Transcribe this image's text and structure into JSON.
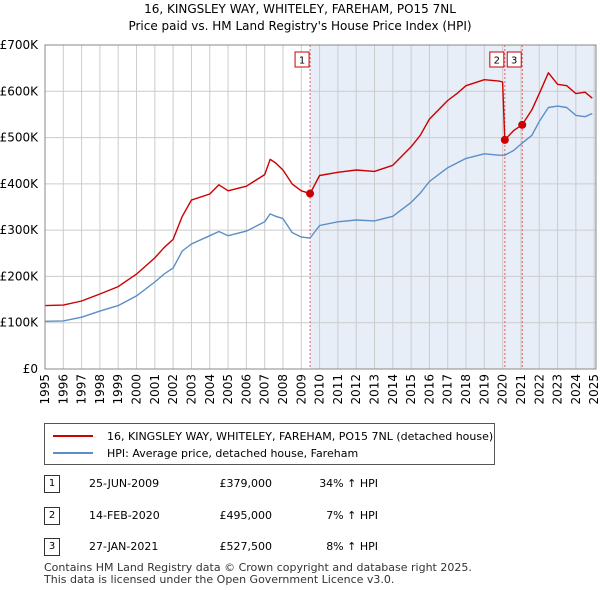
{
  "title": {
    "line1": "16, KINGSLEY WAY, WHITELEY, FAREHAM, PO15 7NL",
    "line2": "Price paid vs. HM Land Registry's House Price Index (HPI)"
  },
  "chart_data": {
    "type": "line",
    "title": "Price paid vs. HM Land Registry's House Price Index (HPI)",
    "xlim": [
      1995,
      2025.1
    ],
    "ylim": [
      0,
      700000
    ],
    "x_ticks": [
      "1995",
      "1996",
      "1997",
      "1998",
      "1999",
      "2000",
      "2001",
      "2002",
      "2003",
      "2004",
      "2005",
      "2006",
      "2007",
      "2008",
      "2009",
      "2010",
      "2011",
      "2012",
      "2013",
      "2014",
      "2015",
      "2016",
      "2017",
      "2018",
      "2019",
      "2020",
      "2021",
      "2022",
      "2023",
      "2024",
      "2025"
    ],
    "y_ticks": [
      {
        "value": 0,
        "label": "£0"
      },
      {
        "value": 100000,
        "label": "£100K"
      },
      {
        "value": 200000,
        "label": "£200K"
      },
      {
        "value": 300000,
        "label": "£300K"
      },
      {
        "value": 400000,
        "label": "£400K"
      },
      {
        "value": 500000,
        "label": "£500K"
      },
      {
        "value": 600000,
        "label": "£600K"
      },
      {
        "value": 700000,
        "label": "£700K"
      }
    ],
    "shaded_region": {
      "from": 2009.48,
      "to": 2025.1,
      "color": "#e8eef8"
    },
    "series": [
      {
        "name": "16, KINGSLEY WAY, WHITELEY, FAREHAM, PO15 7NL (detached house)",
        "color": "#cc0000",
        "points": [
          [
            1995,
            137000
          ],
          [
            1996,
            138000
          ],
          [
            1997,
            147000
          ],
          [
            1998,
            162000
          ],
          [
            1999,
            178000
          ],
          [
            2000,
            205000
          ],
          [
            2001,
            240000
          ],
          [
            2001.5,
            262000
          ],
          [
            2002,
            280000
          ],
          [
            2002.5,
            330000
          ],
          [
            2003,
            365000
          ],
          [
            2004,
            378000
          ],
          [
            2004.5,
            398000
          ],
          [
            2005,
            385000
          ],
          [
            2006,
            395000
          ],
          [
            2007,
            420000
          ],
          [
            2007.3,
            453000
          ],
          [
            2007.6,
            445000
          ],
          [
            2008,
            430000
          ],
          [
            2008.5,
            400000
          ],
          [
            2009.0,
            385000
          ],
          [
            2009.48,
            379000
          ],
          [
            2010,
            418000
          ],
          [
            2011,
            425000
          ],
          [
            2012,
            430000
          ],
          [
            2013,
            427000
          ],
          [
            2014,
            440000
          ],
          [
            2015,
            480000
          ],
          [
            2015.5,
            505000
          ],
          [
            2016,
            540000
          ],
          [
            2017,
            580000
          ],
          [
            2017.5,
            595000
          ],
          [
            2018,
            612000
          ],
          [
            2019,
            625000
          ],
          [
            2019.8,
            622000
          ],
          [
            2020.0,
            620000
          ],
          [
            2020.12,
            495000
          ],
          [
            2020.6,
            515000
          ],
          [
            2021.07,
            527500
          ],
          [
            2021.6,
            560000
          ],
          [
            2022,
            595000
          ],
          [
            2022.5,
            640000
          ],
          [
            2023,
            615000
          ],
          [
            2023.5,
            612000
          ],
          [
            2024,
            595000
          ],
          [
            2024.5,
            598000
          ],
          [
            2024.9,
            585000
          ]
        ]
      },
      {
        "name": "HPI: Average price, detached house, Fareham",
        "color": "#5b8ec9",
        "points": [
          [
            1995,
            103000
          ],
          [
            1996,
            104000
          ],
          [
            1997,
            112000
          ],
          [
            1998,
            125000
          ],
          [
            1999,
            137000
          ],
          [
            2000,
            158000
          ],
          [
            2001,
            188000
          ],
          [
            2001.5,
            205000
          ],
          [
            2002,
            218000
          ],
          [
            2002.5,
            255000
          ],
          [
            2003,
            270000
          ],
          [
            2004,
            288000
          ],
          [
            2004.5,
            297000
          ],
          [
            2005,
            288000
          ],
          [
            2006,
            298000
          ],
          [
            2007,
            318000
          ],
          [
            2007.3,
            335000
          ],
          [
            2007.6,
            330000
          ],
          [
            2008,
            325000
          ],
          [
            2008.5,
            295000
          ],
          [
            2009.0,
            285000
          ],
          [
            2009.48,
            283000
          ],
          [
            2010,
            310000
          ],
          [
            2011,
            318000
          ],
          [
            2012,
            322000
          ],
          [
            2013,
            320000
          ],
          [
            2014,
            330000
          ],
          [
            2015,
            360000
          ],
          [
            2015.5,
            380000
          ],
          [
            2016,
            405000
          ],
          [
            2017,
            435000
          ],
          [
            2017.5,
            445000
          ],
          [
            2018,
            455000
          ],
          [
            2019,
            465000
          ],
          [
            2019.8,
            462000
          ],
          [
            2020.12,
            462000
          ],
          [
            2020.6,
            472000
          ],
          [
            2021.07,
            488000
          ],
          [
            2021.6,
            505000
          ],
          [
            2022,
            535000
          ],
          [
            2022.5,
            565000
          ],
          [
            2023,
            568000
          ],
          [
            2023.5,
            565000
          ],
          [
            2024,
            548000
          ],
          [
            2024.5,
            545000
          ],
          [
            2024.9,
            552000
          ]
        ]
      }
    ],
    "sales": [
      {
        "label": "1",
        "x": 2009.48,
        "value": 379000
      },
      {
        "label": "2",
        "x": 2020.12,
        "value": 495000
      },
      {
        "label": "3",
        "x": 2021.07,
        "value": 527500
      }
    ]
  },
  "legend": {
    "property": "16, KINGSLEY WAY, WHITELEY, FAREHAM, PO15 7NL (detached house)",
    "hpi": "HPI: Average price, detached house, Fareham",
    "property_color": "#cc0000",
    "hpi_color": "#5b8ec9"
  },
  "sales_table": [
    {
      "num": "1",
      "date": "25-JUN-2009",
      "price": "£379,000",
      "hpi": "34% ↑ HPI"
    },
    {
      "num": "2",
      "date": "14-FEB-2020",
      "price": "£495,000",
      "hpi": "7% ↑ HPI"
    },
    {
      "num": "3",
      "date": "27-JAN-2021",
      "price": "£527,500",
      "hpi": "8% ↑ HPI"
    }
  ],
  "footer": {
    "line1": "Contains HM Land Registry data © Crown copyright and database right 2025.",
    "line2": "This data is licensed under the Open Government Licence v3.0."
  }
}
